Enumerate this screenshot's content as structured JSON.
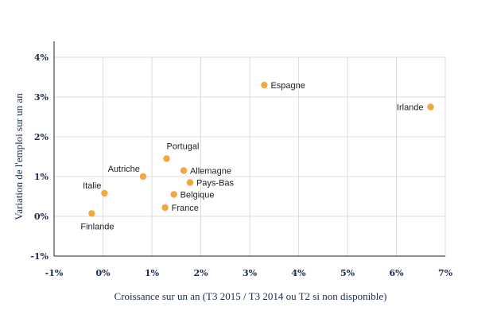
{
  "chart_data": {
    "type": "scatter",
    "title": "",
    "xlabel": "Croissance sur un an (T3 2015 / T3 2014 ou T2 si non disponible)",
    "ylabel": "Variation de l'emploi sur un an",
    "xlim": [
      -1,
      7
    ],
    "ylim": [
      -1,
      4
    ],
    "x_ticks": [
      -1,
      0,
      1,
      2,
      3,
      4,
      5,
      6,
      7
    ],
    "y_ticks": [
      -1,
      0,
      1,
      2,
      3,
      4
    ],
    "x_tick_labels": [
      "-1%",
      "0%",
      "1%",
      "2%",
      "3%",
      "4%",
      "5%",
      "6%",
      "7%"
    ],
    "y_tick_labels": [
      "-1%",
      "0%",
      "1%",
      "2%",
      "3%",
      "4%"
    ],
    "grid": true,
    "point_color": "#f4a640",
    "points": [
      {
        "label": "Espagne",
        "x": 3.3,
        "y": 3.3,
        "label_pos": "right"
      },
      {
        "label": "Irlande",
        "x": 6.7,
        "y": 2.75,
        "label_pos": "left"
      },
      {
        "label": "Portugal",
        "x": 1.3,
        "y": 1.45,
        "label_pos": "top-right"
      },
      {
        "label": "Allemagne",
        "x": 1.65,
        "y": 1.15,
        "label_pos": "right"
      },
      {
        "label": "Autriche",
        "x": 0.82,
        "y": 1.0,
        "label_pos": "top-left"
      },
      {
        "label": "Pays-Bas",
        "x": 1.78,
        "y": 0.85,
        "label_pos": "right"
      },
      {
        "label": "Italie",
        "x": 0.03,
        "y": 0.58,
        "label_pos": "top-left"
      },
      {
        "label": "Belgique",
        "x": 1.45,
        "y": 0.55,
        "label_pos": "right"
      },
      {
        "label": "France",
        "x": 1.27,
        "y": 0.22,
        "label_pos": "right"
      },
      {
        "label": "Finlande",
        "x": -0.23,
        "y": 0.07,
        "label_pos": "bottom"
      }
    ]
  }
}
